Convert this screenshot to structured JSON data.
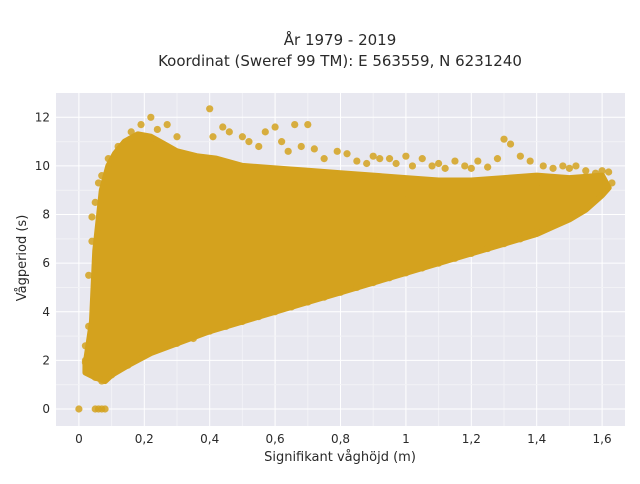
{
  "chart_data": {
    "type": "scatter",
    "title_lines": [
      "År 1979 - 2019",
      "Koordinat (Sweref 99 TM): E 563559, N 6231240"
    ],
    "xlabel": "Signifikant våghöjd (m)",
    "ylabel": "Vågperiod (s)",
    "xlim": [
      -0.07,
      1.67
    ],
    "ylim": [
      -0.7,
      13.0
    ],
    "xticks": [
      0,
      0.2,
      0.4,
      0.6,
      0.8,
      1.0,
      1.2,
      1.4,
      1.6
    ],
    "xtick_labels": [
      "0",
      "0,2",
      "0,4",
      "0,6",
      "0,8",
      "1",
      "1,2",
      "1,4",
      "1,6"
    ],
    "yticks": [
      0,
      2,
      4,
      6,
      8,
      10,
      12
    ],
    "ytick_labels": [
      "0",
      "2",
      "4",
      "6",
      "8",
      "10",
      "12"
    ],
    "grid": true,
    "marker_color": "#d4a21e",
    "plot_bg": "#e8e8f0",
    "cloud_outline": [
      [
        0.02,
        1.8
      ],
      [
        0.04,
        3.6
      ],
      [
        0.05,
        6.5
      ],
      [
        0.07,
        9.0
      ],
      [
        0.09,
        10.0
      ],
      [
        0.11,
        10.5
      ],
      [
        0.14,
        11.0
      ],
      [
        0.18,
        11.3
      ],
      [
        0.22,
        11.2
      ],
      [
        0.26,
        10.9
      ],
      [
        0.3,
        10.6
      ],
      [
        0.36,
        10.4
      ],
      [
        0.42,
        10.3
      ],
      [
        0.5,
        10.0
      ],
      [
        0.6,
        9.9
      ],
      [
        0.7,
        9.8
      ],
      [
        0.8,
        9.7
      ],
      [
        0.9,
        9.6
      ],
      [
        1.0,
        9.5
      ],
      [
        1.1,
        9.4
      ],
      [
        1.2,
        9.4
      ],
      [
        1.3,
        9.5
      ],
      [
        1.4,
        9.6
      ],
      [
        1.5,
        9.5
      ],
      [
        1.6,
        9.6
      ],
      [
        1.62,
        9.1
      ],
      [
        1.6,
        8.8
      ],
      [
        1.55,
        8.2
      ],
      [
        1.5,
        7.8
      ],
      [
        1.45,
        7.5
      ],
      [
        1.4,
        7.2
      ],
      [
        1.3,
        6.8
      ],
      [
        1.2,
        6.4
      ],
      [
        1.1,
        6.0
      ],
      [
        1.0,
        5.6
      ],
      [
        0.9,
        5.2
      ],
      [
        0.8,
        4.8
      ],
      [
        0.7,
        4.4
      ],
      [
        0.6,
        4.0
      ],
      [
        0.5,
        3.6
      ],
      [
        0.4,
        3.2
      ],
      [
        0.3,
        2.7
      ],
      [
        0.22,
        2.3
      ],
      [
        0.15,
        1.8
      ],
      [
        0.1,
        1.4
      ],
      [
        0.08,
        1.15
      ],
      [
        0.05,
        1.3
      ],
      [
        0.02,
        1.5
      ]
    ],
    "points": [
      [
        0.0,
        0.0
      ],
      [
        0.05,
        0.0
      ],
      [
        0.06,
        0.0
      ],
      [
        0.07,
        0.0
      ],
      [
        0.08,
        0.0
      ],
      [
        0.02,
        2.0
      ],
      [
        0.02,
        2.6
      ],
      [
        0.03,
        3.4
      ],
      [
        0.03,
        5.5
      ],
      [
        0.04,
        6.9
      ],
      [
        0.04,
        7.9
      ],
      [
        0.05,
        8.5
      ],
      [
        0.06,
        9.3
      ],
      [
        0.07,
        9.6
      ],
      [
        0.09,
        10.3
      ],
      [
        0.12,
        10.8
      ],
      [
        0.15,
        11.0
      ],
      [
        0.16,
        11.4
      ],
      [
        0.19,
        11.7
      ],
      [
        0.22,
        12.0
      ],
      [
        0.24,
        11.5
      ],
      [
        0.27,
        11.7
      ],
      [
        0.3,
        11.2
      ],
      [
        0.4,
        12.35
      ],
      [
        0.41,
        11.2
      ],
      [
        0.44,
        11.6
      ],
      [
        0.46,
        11.4
      ],
      [
        0.5,
        11.2
      ],
      [
        0.52,
        11.0
      ],
      [
        0.55,
        10.8
      ],
      [
        0.57,
        11.4
      ],
      [
        0.6,
        11.6
      ],
      [
        0.62,
        11.0
      ],
      [
        0.64,
        10.6
      ],
      [
        0.66,
        11.7
      ],
      [
        0.68,
        10.8
      ],
      [
        0.7,
        11.7
      ],
      [
        0.72,
        10.7
      ],
      [
        0.75,
        10.3
      ],
      [
        0.79,
        10.6
      ],
      [
        0.82,
        10.5
      ],
      [
        0.85,
        10.2
      ],
      [
        0.88,
        10.1
      ],
      [
        0.9,
        10.4
      ],
      [
        0.92,
        10.3
      ],
      [
        0.95,
        10.3
      ],
      [
        0.97,
        10.1
      ],
      [
        1.0,
        10.4
      ],
      [
        1.02,
        10.0
      ],
      [
        1.05,
        10.3
      ],
      [
        1.08,
        10.0
      ],
      [
        1.1,
        10.1
      ],
      [
        1.12,
        9.9
      ],
      [
        1.15,
        10.2
      ],
      [
        1.18,
        10.0
      ],
      [
        1.2,
        9.9
      ],
      [
        1.22,
        10.2
      ],
      [
        1.25,
        9.95
      ],
      [
        1.28,
        10.3
      ],
      [
        1.3,
        11.1
      ],
      [
        1.32,
        10.9
      ],
      [
        1.35,
        10.4
      ],
      [
        1.38,
        10.2
      ],
      [
        1.42,
        10.0
      ],
      [
        1.45,
        9.9
      ],
      [
        1.48,
        10.0
      ],
      [
        1.5,
        9.9
      ],
      [
        1.52,
        10.0
      ],
      [
        1.55,
        9.8
      ],
      [
        1.58,
        9.7
      ],
      [
        1.6,
        9.8
      ],
      [
        1.62,
        9.75
      ],
      [
        1.63,
        9.3
      ],
      [
        1.6,
        9.0
      ],
      [
        1.58,
        8.6
      ],
      [
        1.54,
        8.2
      ],
      [
        1.5,
        7.9
      ],
      [
        1.46,
        7.6
      ],
      [
        1.4,
        7.3
      ],
      [
        1.35,
        7.0
      ],
      [
        1.3,
        6.8
      ],
      [
        1.25,
        6.6
      ],
      [
        1.2,
        6.4
      ],
      [
        1.15,
        6.2
      ],
      [
        1.1,
        6.0
      ],
      [
        1.05,
        5.8
      ],
      [
        1.0,
        5.6
      ],
      [
        0.95,
        5.4
      ],
      [
        0.9,
        5.2
      ],
      [
        0.85,
        5.0
      ],
      [
        0.8,
        4.8
      ],
      [
        0.75,
        4.6
      ],
      [
        0.7,
        4.4
      ],
      [
        0.65,
        4.2
      ],
      [
        0.6,
        4.0
      ],
      [
        0.55,
        3.8
      ],
      [
        0.5,
        3.6
      ],
      [
        0.45,
        3.4
      ],
      [
        0.4,
        3.2
      ],
      [
        0.35,
        2.9
      ],
      [
        0.3,
        2.7
      ],
      [
        0.25,
        2.5
      ],
      [
        0.2,
        2.2
      ],
      [
        0.15,
        1.8
      ],
      [
        0.12,
        1.6
      ],
      [
        0.1,
        1.4
      ],
      [
        0.08,
        1.2
      ],
      [
        0.07,
        1.15
      ],
      [
        0.05,
        1.3
      ],
      [
        0.03,
        1.6
      ],
      [
        0.02,
        1.9
      ],
      [
        1.0,
        8.6
      ],
      [
        1.2,
        8.8
      ],
      [
        1.4,
        9.1
      ],
      [
        0.5,
        8.5
      ],
      [
        0.3,
        8.0
      ],
      [
        0.2,
        6.0
      ],
      [
        0.7,
        7.5
      ],
      [
        0.9,
        7.0
      ],
      [
        1.3,
        7.8
      ]
    ]
  }
}
